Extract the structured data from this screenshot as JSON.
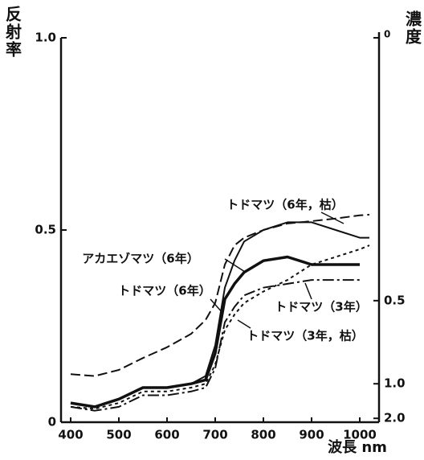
{
  "chart_data": {
    "type": "line",
    "ylabel": "反射率",
    "y2label": "濃度",
    "xlabel": "波長 nm",
    "x": [
      400,
      450,
      500,
      550,
      600,
      650,
      680,
      700,
      720,
      740,
      760,
      800,
      850,
      900,
      950,
      1000,
      1020
    ],
    "xlim": [
      380,
      1040
    ],
    "xticks": [
      400,
      500,
      600,
      700,
      800,
      900,
      1000
    ],
    "ylim": [
      0,
      1
    ],
    "yticks": [
      0,
      0.5,
      {
        "value": 1,
        "label": "1.0"
      }
    ],
    "y2scale": "density",
    "y2ticks": [
      0,
      0.5,
      {
        "value": 1,
        "label": "1.0"
      },
      {
        "value": 2,
        "label": "2.0"
      }
    ],
    "series": [
      {
        "name": "トドマツ（6年，枯）",
        "color": "#111111",
        "style": "dashed",
        "width": 2,
        "values": [
          0.125,
          0.12,
          0.136,
          0.167,
          0.195,
          0.23,
          0.266,
          0.31,
          0.41,
          0.46,
          0.48,
          0.5,
          0.517,
          0.523,
          0.53,
          0.538,
          0.54
        ]
      },
      {
        "name": "トドマツ（6年）",
        "color": "#111111",
        "style": "solid",
        "width": 2,
        "values": [
          0.05,
          0.04,
          0.06,
          0.09,
          0.09,
          0.1,
          0.12,
          0.2,
          0.35,
          0.42,
          0.47,
          0.5,
          0.52,
          0.52,
          0.5,
          0.48,
          0.48
        ]
      },
      {
        "name": "アカエゾマツ（6年）",
        "color": "#111111",
        "style": "solid",
        "width": 3.5,
        "values": [
          0.05,
          0.04,
          0.06,
          0.09,
          0.09,
          0.1,
          0.11,
          0.18,
          0.32,
          0.36,
          0.39,
          0.42,
          0.43,
          0.41,
          0.41,
          0.41,
          null
        ]
      },
      {
        "name": "トドマツ（3年）",
        "color": "#111111",
        "style": "dotted",
        "width": 2,
        "values": [
          0.04,
          0.035,
          0.05,
          0.08,
          0.08,
          0.09,
          0.1,
          0.15,
          0.24,
          0.28,
          0.31,
          0.34,
          0.37,
          0.41,
          0.43,
          0.45,
          0.46
        ]
      },
      {
        "name": "トドマツ（3年，枯）",
        "color": "#111111",
        "style": "dashdot",
        "width": 2,
        "values": [
          0.04,
          0.03,
          0.04,
          0.07,
          0.07,
          0.08,
          0.09,
          0.14,
          0.26,
          0.3,
          0.33,
          0.35,
          0.36,
          0.37,
          0.37,
          0.37,
          null
        ]
      }
    ]
  }
}
